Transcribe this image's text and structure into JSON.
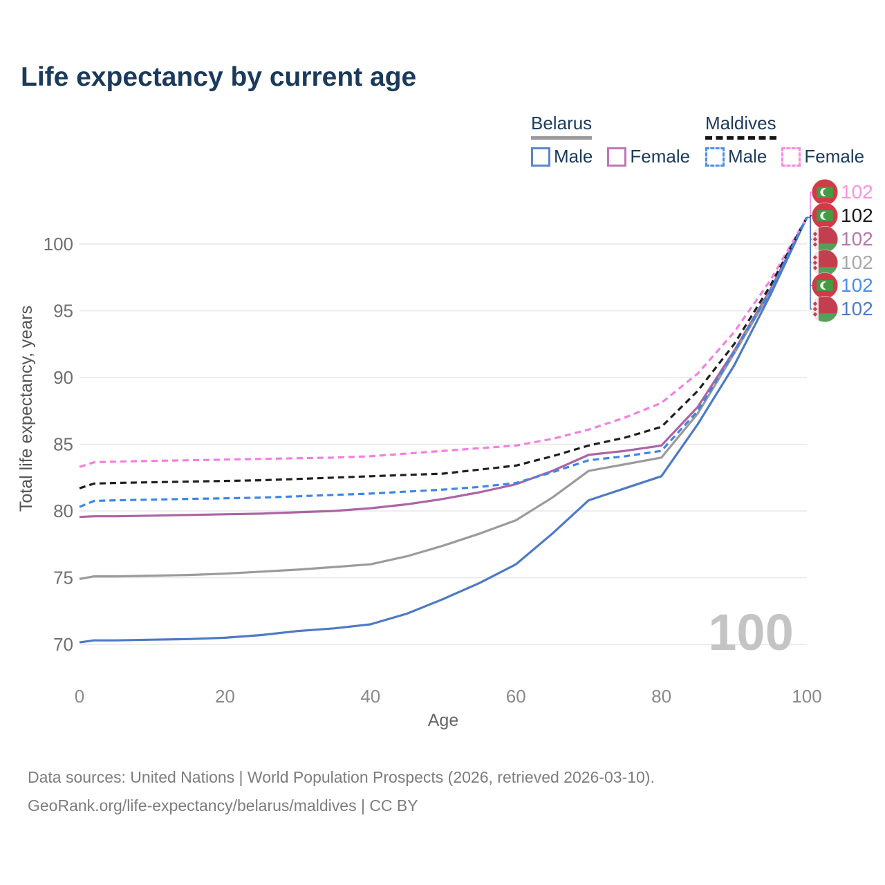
{
  "title": "Life expectancy by current age",
  "legend": {
    "groups": [
      {
        "label": "Belarus",
        "underline": "solid",
        "underline_color": "#9a9a9a",
        "items": [
          {
            "label": "Male",
            "color": "#5b87c9",
            "dashed": false
          },
          {
            "label": "Female",
            "color": "#bc77b5",
            "dashed": false
          }
        ]
      },
      {
        "label": "Maldives",
        "underline": "dashed",
        "underline_color": "#151515",
        "items": [
          {
            "label": "Male",
            "color": "#4a8fe8",
            "dashed": true
          },
          {
            "label": "Female",
            "color": "#fb87e3",
            "dashed": true
          }
        ]
      }
    ]
  },
  "chart_data": {
    "type": "line",
    "title": "Life expectancy by current age",
    "xlabel": "Age",
    "ylabel": "Total life expectancy, years",
    "x": [
      0,
      2,
      5,
      10,
      15,
      20,
      25,
      30,
      35,
      40,
      45,
      50,
      55,
      60,
      65,
      70,
      75,
      80,
      85,
      90,
      95,
      100
    ],
    "xticks": [
      0,
      20,
      40,
      60,
      80,
      100
    ],
    "yticks": [
      70,
      75,
      80,
      85,
      90,
      95,
      100
    ],
    "xlim": [
      0,
      100
    ],
    "ylim": [
      68,
      103.5
    ],
    "grid": "horizontal-only",
    "legend_position": "top-right",
    "age_indicator": "100",
    "series": [
      {
        "id": "maldives-female",
        "name": "Maldives Female",
        "country": "Maldives",
        "flag": "maldives",
        "color": "#f57fe0",
        "label_color": "#f793e2",
        "dashed": true,
        "end_label": "102",
        "values": [
          83.3,
          83.65,
          83.7,
          83.75,
          83.8,
          83.85,
          83.9,
          83.95,
          84.0,
          84.1,
          84.3,
          84.5,
          84.7,
          84.9,
          85.4,
          86.1,
          87.0,
          88.1,
          90.3,
          93.4,
          97.3,
          102
        ]
      },
      {
        "id": "maldives-total",
        "name": "Maldives",
        "country": "Maldives",
        "flag": "maldives",
        "color": "#1f1f1f",
        "label_color": "#1a1a1a",
        "dashed": true,
        "end_label": "102",
        "values": [
          81.7,
          82.05,
          82.1,
          82.15,
          82.2,
          82.25,
          82.3,
          82.4,
          82.5,
          82.6,
          82.7,
          82.8,
          83.1,
          83.4,
          84.1,
          84.9,
          85.5,
          86.3,
          89.0,
          92.5,
          96.9,
          102
        ]
      },
      {
        "id": "belarus-female",
        "name": "Belarus Female",
        "country": "Belarus",
        "flag": "belarus",
        "color": "#ab64a4",
        "label_color": "#b377ae",
        "dashed": false,
        "end_label": "102",
        "values": [
          79.55,
          79.6,
          79.6,
          79.65,
          79.7,
          79.75,
          79.8,
          79.9,
          80.0,
          80.2,
          80.5,
          80.9,
          81.4,
          82.0,
          83.0,
          84.2,
          84.5,
          84.9,
          87.8,
          92.0,
          96.6,
          102
        ]
      },
      {
        "id": "belarus-total",
        "name": "Belarus",
        "country": "Belarus",
        "flag": "belarus",
        "color": "#9b9b9b",
        "label_color": "#a8a8a8",
        "dashed": false,
        "end_label": "102",
        "values": [
          74.9,
          75.1,
          75.1,
          75.15,
          75.2,
          75.3,
          75.45,
          75.6,
          75.8,
          76.0,
          76.6,
          77.4,
          78.3,
          79.3,
          81.0,
          83.0,
          83.5,
          84.0,
          87.3,
          91.8,
          96.4,
          102
        ]
      },
      {
        "id": "maldives-male",
        "name": "Maldives Male",
        "country": "Maldives",
        "flag": "maldives",
        "color": "#3c86e6",
        "label_color": "#4b8ee8",
        "dashed": true,
        "end_label": "102",
        "values": [
          80.3,
          80.75,
          80.8,
          80.85,
          80.9,
          80.95,
          81.0,
          81.1,
          81.2,
          81.3,
          81.45,
          81.6,
          81.8,
          82.1,
          82.9,
          83.8,
          84.1,
          84.5,
          87.5,
          91.9,
          96.5,
          102
        ]
      },
      {
        "id": "belarus-male",
        "name": "Belarus Male",
        "country": "Belarus",
        "flag": "belarus",
        "color": "#4d7ac4",
        "label_color": "#4b7bc8",
        "dashed": false,
        "end_label": "102",
        "values": [
          70.15,
          70.3,
          70.3,
          70.35,
          70.4,
          70.5,
          70.7,
          71.0,
          71.2,
          71.5,
          72.3,
          73.4,
          74.6,
          76.0,
          78.3,
          80.8,
          81.7,
          82.6,
          86.5,
          90.9,
          96.2,
          102
        ]
      }
    ]
  },
  "footer": {
    "line1": "Data sources: United Nations | World Population Prospects (2026, retrieved 2026-03-10).",
    "line2": "GeoRank.org/life-expectancy/belarus/maldives | CC BY"
  }
}
